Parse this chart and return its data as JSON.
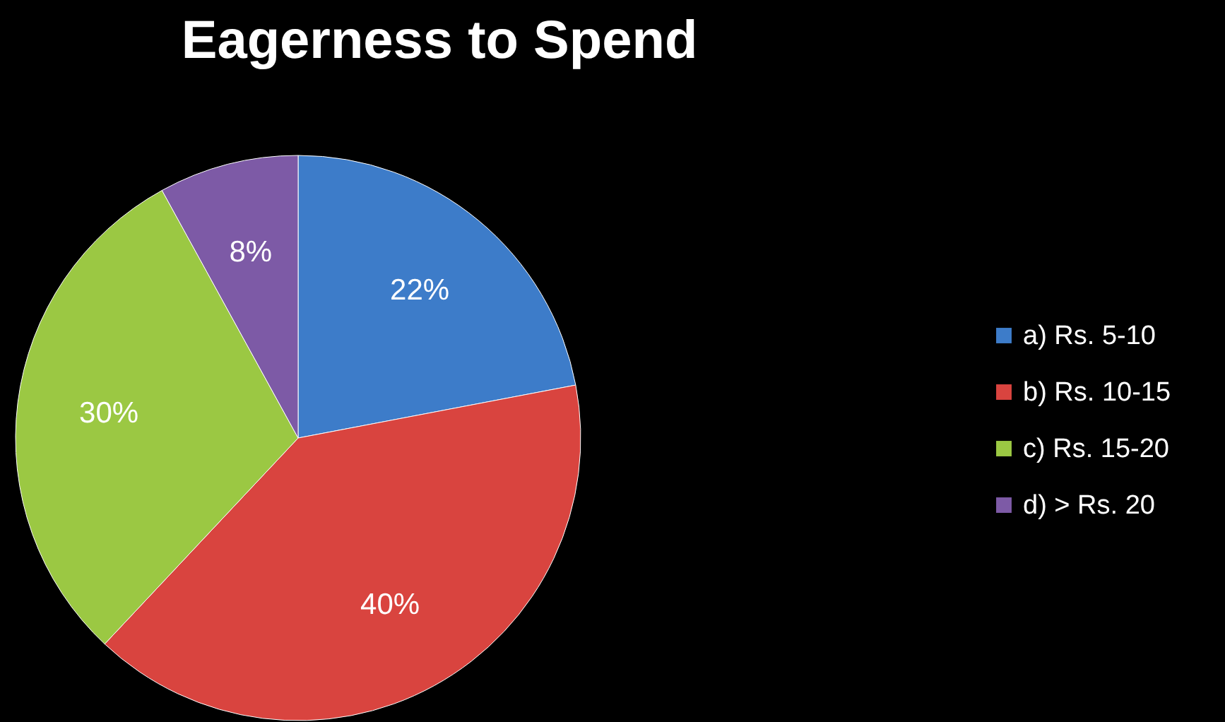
{
  "chart_data": {
    "type": "pie",
    "title": "Eagerness to Spend",
    "categories": [
      "a) Rs. 5-10",
      "b) Rs. 10-15",
      "c) Rs. 15-20",
      "d) > Rs. 20"
    ],
    "values": [
      22,
      40,
      30,
      8
    ],
    "value_labels": [
      "22%",
      "40%",
      "30%",
      "8%"
    ],
    "colors": [
      "#3d7cc9",
      "#d9443f",
      "#9bc843",
      "#7d5aa6"
    ],
    "legend": "right"
  }
}
